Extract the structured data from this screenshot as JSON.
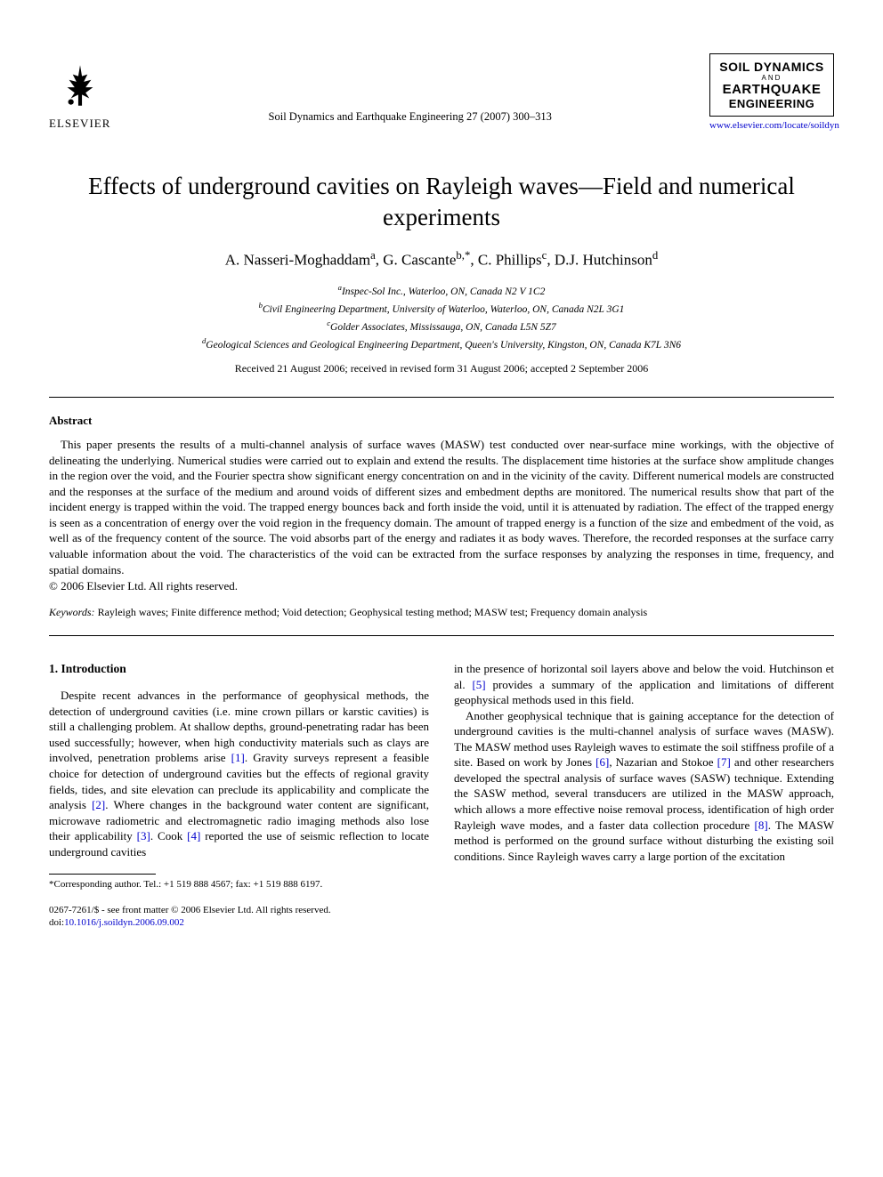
{
  "header": {
    "publisher_name": "ELSEVIER",
    "journal_ref": "Soil Dynamics and Earthquake Engineering 27 (2007) 300–313",
    "journal_logo": {
      "line1": "SOIL DYNAMICS",
      "and": "AND",
      "line2": "EARTHQUAKE",
      "line3": "ENGINEERING"
    },
    "journal_url": "www.elsevier.com/locate/soildyn"
  },
  "title": "Effects of underground cavities on Rayleigh waves—Field and numerical experiments",
  "authors_html": "A. Nasseri-Moghaddam<sup>a</sup>, G. Cascante<sup>b,*</sup>, C. Phillips<sup>c</sup>, D.J. Hutchinson<sup>d</sup>",
  "affiliations": [
    "<sup>a</sup>Inspec-Sol Inc., Waterloo, ON, Canada N2 V 1C2",
    "<sup>b</sup>Civil Engineering Department, University of Waterloo, Waterloo, ON, Canada N2L 3G1",
    "<sup>c</sup>Golder Associates, Mississauga, ON, Canada L5N 5Z7",
    "<sup>d</sup>Geological Sciences and Geological Engineering Department, Queen's University, Kingston, ON, Canada K7L 3N6"
  ],
  "dates": "Received 21 August 2006; received in revised form 31 August 2006; accepted 2 September 2006",
  "abstract": {
    "heading": "Abstract",
    "body": "This paper presents the results of a multi-channel analysis of surface waves (MASW) test conducted over near-surface mine workings, with the objective of delineating the underlying. Numerical studies were carried out to explain and extend the results. The displacement time histories at the surface show amplitude changes in the region over the void, and the Fourier spectra show significant energy concentration on and in the vicinity of the cavity. Different numerical models are constructed and the responses at the surface of the medium and around voids of different sizes and embedment depths are monitored. The numerical results show that part of the incident energy is trapped within the void. The trapped energy bounces back and forth inside the void, until it is attenuated by radiation. The effect of the trapped energy is seen as a concentration of energy over the void region in the frequency domain. The amount of trapped energy is a function of the size and embedment of the void, as well as of the frequency content of the source. The void absorbs part of the energy and radiates it as body waves. Therefore, the recorded responses at the surface carry valuable information about the void. The characteristics of the void can be extracted from the surface responses by analyzing the responses in time, frequency, and spatial domains.",
    "copyright": "© 2006 Elsevier Ltd. All rights reserved."
  },
  "keywords": {
    "label": "Keywords:",
    "text": " Rayleigh waves; Finite difference method; Void detection; Geophysical testing method; MASW test; Frequency domain analysis"
  },
  "section1": {
    "heading": "1. Introduction",
    "col1_para1": "Despite recent advances in the performance of geophysical methods, the detection of underground cavities (i.e. mine crown pillars or karstic cavities) is still a challenging problem. At shallow depths, ground-penetrating radar has been used successfully; however, when high conductivity materials such as clays are involved, penetration problems arise <span class=\"cite\">[1]</span>. Gravity surveys represent a feasible choice for detection of underground cavities but the effects of regional gravity fields, tides, and site elevation can preclude its applicability and complicate the analysis <span class=\"cite\">[2]</span>. Where changes in the background water content are significant, microwave radiometric and electromagnetic radio imaging methods also lose their applicability <span class=\"cite\">[3]</span>. Cook <span class=\"cite\">[4]</span> reported the use of seismic reflection to locate underground cavities",
    "col2_para_cont": "in the presence of horizontal soil layers above and below the void. Hutchinson et al. <span class=\"cite\">[5]</span> provides a summary of the application and limitations of different geophysical methods used in this field.",
    "col2_para2": "Another geophysical technique that is gaining acceptance for the detection of underground cavities is the multi-channel analysis of surface waves (MASW). The MASW method uses Rayleigh waves to estimate the soil stiffness profile of a site. Based on work by Jones <span class=\"cite\">[6]</span>, Nazarian and Stokoe <span class=\"cite\">[7]</span> and other researchers developed the spectral analysis of surface waves (SASW) technique. Extending the SASW method, several transducers are utilized in the MASW approach, which allows a more effective noise removal process, identification of high order Rayleigh wave modes, and a faster data collection procedure <span class=\"cite\">[8]</span>. The MASW method is performed on the ground surface without disturbing the existing soil conditions. Since Rayleigh waves carry a large portion of the excitation"
  },
  "footnote": "*Corresponding author. Tel.: +1 519 888 4567; fax: +1 519 888 6197.",
  "footer": {
    "line1": "0267-7261/$ - see front matter © 2006 Elsevier Ltd. All rights reserved.",
    "doi_label": "doi:",
    "doi": "10.1016/j.soildyn.2006.09.002"
  },
  "colors": {
    "link": "#0000cc",
    "text": "#000000",
    "background": "#ffffff"
  }
}
